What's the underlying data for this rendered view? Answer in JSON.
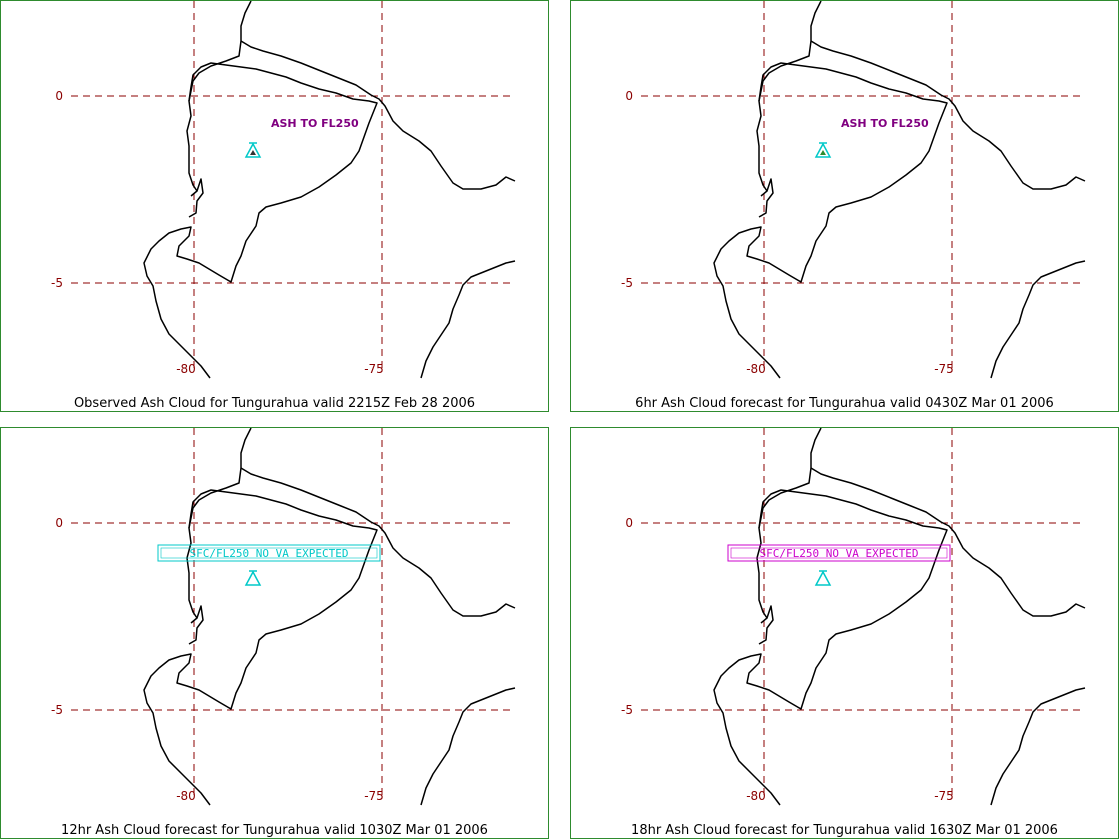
{
  "panels": [
    {
      "caption": "Observed Ash Cloud for Tungurahua valid 2215Z Feb 28 2006",
      "label": "ASH TO FL250",
      "label_type": "plain",
      "label_color": "#800080",
      "marker_color": "#00c8c8"
    },
    {
      "caption": "6hr Ash Cloud forecast for Tungurahua valid 0430Z Mar 01 2006",
      "label": "ASH TO FL250",
      "label_type": "plain",
      "label_color": "#800080",
      "marker_color": "#00c8c8"
    },
    {
      "caption": "12hr Ash Cloud forecast for Tungurahua valid 1030Z Mar 01 2006",
      "label": "SFC/FL250 NO VA EXPECTED",
      "label_type": "boxed",
      "label_color": "#00c8c8",
      "marker_color": "#00c8c8"
    },
    {
      "caption": "18hr Ash Cloud forecast for Tungurahua valid 1630Z Mar 01 2006",
      "label": "SFC/FL250 NO VA EXPECTED",
      "label_type": "boxed",
      "label_color": "#cc00cc",
      "marker_color": "#00c8c8"
    }
  ],
  "axes": {
    "lat_labels": [
      "0",
      "-5"
    ],
    "lon_labels": [
      "-80",
      "-75"
    ]
  },
  "colors": {
    "grid": "#8b0000",
    "frame": "#2e8b2e",
    "coast": "#000000"
  }
}
